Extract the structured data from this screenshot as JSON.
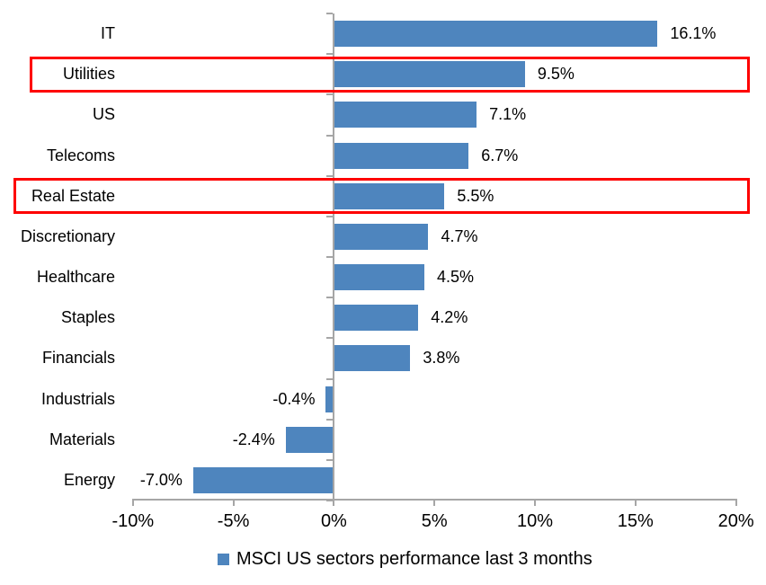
{
  "chart_data": {
    "type": "bar",
    "orientation": "horizontal",
    "title": "",
    "categories": [
      "IT",
      "Utilities",
      "US",
      "Telecoms",
      "Real Estate",
      "Discretionary",
      "Healthcare",
      "Staples",
      "Financials",
      "Industrials",
      "Materials",
      "Energy"
    ],
    "values": [
      16.1,
      9.5,
      7.1,
      6.7,
      5.5,
      4.7,
      4.5,
      4.2,
      3.8,
      -0.4,
      -2.4,
      -7.0
    ],
    "value_labels": [
      "16.1%",
      "9.5%",
      "7.1%",
      "6.7%",
      "5.5%",
      "4.7%",
      "4.5%",
      "4.2%",
      "3.8%",
      "-0.4%",
      "-2.4%",
      "-7.0%"
    ],
    "xlim": [
      -10,
      20
    ],
    "x_ticks": [
      -10,
      -5,
      0,
      5,
      10,
      15,
      20
    ],
    "x_tick_labels": [
      "-10%",
      "-5%",
      "0%",
      "5%",
      "10%",
      "15%",
      "20%"
    ],
    "grid": false,
    "legend": "MSCI US sectors performance last 3 months",
    "legend_position": "bottom",
    "highlighted_categories": [
      "Utilities",
      "Real Estate"
    ],
    "colors": {
      "bar": "#4e85be",
      "highlight_box": "#fe0000",
      "axis": "#a6a6a6",
      "text": "#000000"
    }
  }
}
